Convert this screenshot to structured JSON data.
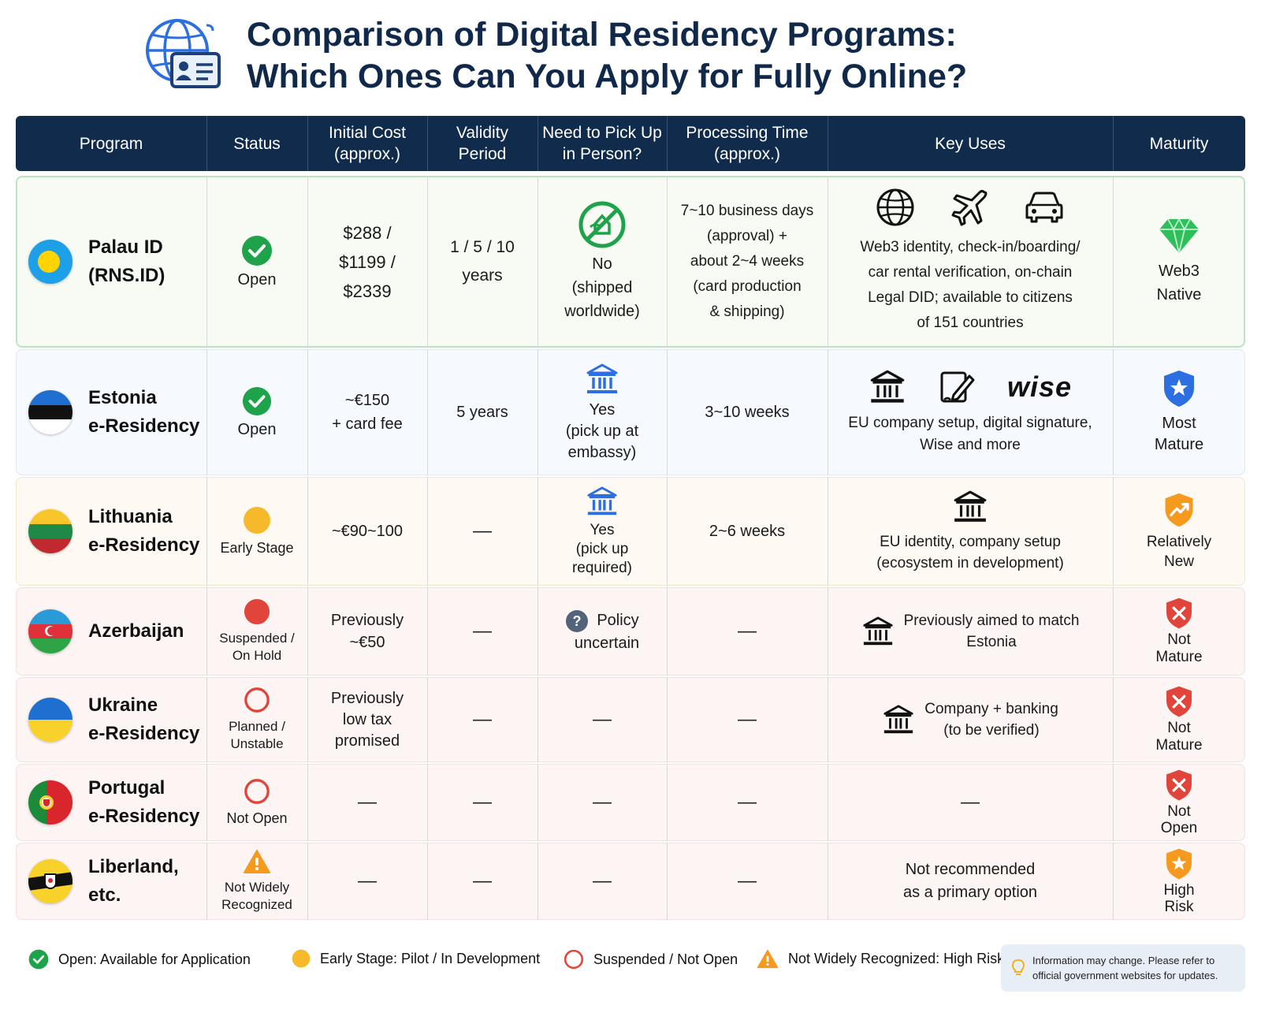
{
  "title": {
    "line1": "Comparison of Digital Residency Programs:",
    "line2": "Which Ones Can You Apply for Fully Online?"
  },
  "columns": {
    "program": "Program",
    "status": "Status",
    "cost_l1": "Initial Cost",
    "cost_l2": "(approx.)",
    "validity_l1": "Validity",
    "validity_l2": "Period",
    "pickup_l1": "Need to Pick Up",
    "pickup_l2": "in Person?",
    "processing_l1": "Processing Time",
    "processing_l2": "(approx.)",
    "uses": "Key Uses",
    "maturity": "Maturity"
  },
  "rows": [
    {
      "name_l1": "Palau ID",
      "name_l2": "(RNS.ID)",
      "status": "Open",
      "cost_l1": "$288 /",
      "cost_l2": "$1199 /",
      "cost_l3": "$2339",
      "validity_l1": "1 / 5 / 10",
      "validity_l2": "years",
      "pickup_l1": "No",
      "pickup_l2": "(shipped",
      "pickup_l3": "worldwide)",
      "processing_l1": "7~10 business days",
      "processing_l2": "(approval) +",
      "processing_l3": "about 2~4 weeks",
      "processing_l4": "(card production",
      "processing_l5": "& shipping)",
      "uses_l1": "Web3 identity, check-in/boarding/",
      "uses_l2": "car rental verification, on-chain",
      "uses_l3": "Legal DID; available to citizens",
      "uses_l4": "of 151 countries",
      "maturity_l1": "Web3",
      "maturity_l2": "Native"
    },
    {
      "name_l1": "Estonia",
      "name_l2": "e-Residency",
      "status": "Open",
      "cost_l1": "~€150",
      "cost_l2": "+ card fee",
      "validity": "5 years",
      "pickup_l1": "Yes",
      "pickup_l2": "(pick up at",
      "pickup_l3": "embassy)",
      "processing": "3~10 weeks",
      "uses_brand": "wise",
      "uses_l1": "EU company setup, digital signature,",
      "uses_l2": "Wise and more",
      "maturity_l1": "Most",
      "maturity_l2": "Mature"
    },
    {
      "name_l1": "Lithuania",
      "name_l2": "e-Residency",
      "status": "Early Stage",
      "cost": "~€90~100",
      "validity": "—",
      "pickup_l1": "Yes",
      "pickup_l2": "(pick up",
      "pickup_l3": "required)",
      "processing": "2~6 weeks",
      "uses_l1": "EU identity, company setup",
      "uses_l2": "(ecosystem in development)",
      "maturity_l1": "Relatively",
      "maturity_l2": "New"
    },
    {
      "name_l1": "Azerbaijan",
      "status_l1": "Suspended /",
      "status_l2": "On Hold",
      "cost_l1": "Previously",
      "cost_l2": "~€50",
      "validity": "—",
      "pickup_l1": "Policy",
      "pickup_l2": "uncertain",
      "processing": "—",
      "uses_l1": "Previously aimed to match",
      "uses_l2": "Estonia",
      "maturity_l1": "Not",
      "maturity_l2": "Mature"
    },
    {
      "name_l1": "Ukraine",
      "name_l2": "e-Residency",
      "status_l1": "Planned /",
      "status_l2": "Unstable",
      "cost_l1": "Previously",
      "cost_l2": "low tax",
      "cost_l3": "promised",
      "validity": "—",
      "pickup": "—",
      "processing": "—",
      "uses_l1": "Company + banking",
      "uses_l2": "(to be verified)",
      "maturity_l1": "Not",
      "maturity_l2": "Mature"
    },
    {
      "name_l1": "Portugal",
      "name_l2": "e-Residency",
      "status": "Not Open",
      "cost": "—",
      "validity": "—",
      "pickup": "—",
      "processing": "—",
      "uses": "—",
      "maturity_l1": "Not",
      "maturity_l2": "Open"
    },
    {
      "name_l1": "Liberland, etc.",
      "status_l1": "Not Widely",
      "status_l2": "Recognized",
      "cost": "—",
      "validity": "—",
      "pickup": "—",
      "processing": "—",
      "uses_l1": "Not recommended",
      "uses_l2": "as a primary option",
      "maturity_l1": "High",
      "maturity_l2": "Risk"
    }
  ],
  "legend": {
    "open": "Open:  Available for Application",
    "early": "Early Stage: Pilot / In Development",
    "suspended": "Suspended / Not Open",
    "not_recognized": "Not Widely Recognized: High Risk",
    "note_l1": "Information may change. Please refer to",
    "note_l2": "official government websites for updates."
  },
  "colors": {
    "header": "#112b4d",
    "title": "#10284a",
    "open_green": "#1fa34a",
    "early_yellow": "#f7b92c",
    "suspended_red": "#e0443a",
    "warning_orange": "#f59a1f",
    "mature_blue": "#2d6fe0",
    "web3_green": "#2fbf5a"
  }
}
